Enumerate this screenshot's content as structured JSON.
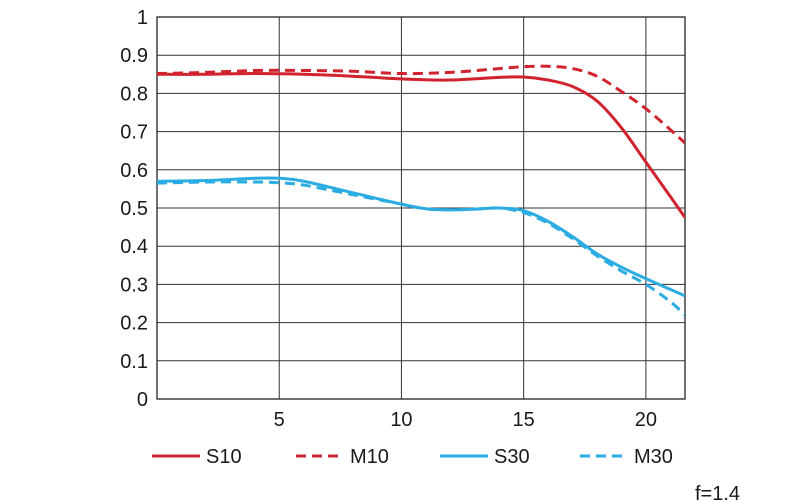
{
  "chart_data": {
    "type": "line",
    "title": "",
    "xlabel": "",
    "ylabel": "",
    "xlim": [
      0,
      21.6
    ],
    "ylim": [
      0,
      1
    ],
    "x_ticks": [
      5,
      10,
      15,
      20
    ],
    "y_ticks": [
      0,
      0.1,
      0.2,
      0.3,
      0.4,
      0.5,
      0.6,
      0.7,
      0.8,
      0.9,
      1
    ],
    "y_tick_labels": [
      "0",
      "0.1",
      "0.2",
      "0.3",
      "0.4",
      "0.5",
      "0.6",
      "0.7",
      "0.8",
      "0.9",
      "1"
    ],
    "x_tick_labels": [
      "5",
      "10",
      "15",
      "20"
    ],
    "grid": true,
    "legend_position": "bottom",
    "annotation": "f=1.4",
    "series": [
      {
        "name": "S10",
        "color": "#d1232e",
        "dash": "solid",
        "x": [
          0,
          2,
          4,
          6,
          8,
          10,
          12,
          14,
          15,
          16,
          17,
          18,
          19,
          20,
          21,
          21.6
        ],
        "y": [
          0.85,
          0.85,
          0.852,
          0.85,
          0.845,
          0.838,
          0.835,
          0.842,
          0.843,
          0.835,
          0.818,
          0.78,
          0.71,
          0.62,
          0.53,
          0.475
        ]
      },
      {
        "name": "M10",
        "color": "#d1232e",
        "dash": "dashed",
        "x": [
          0,
          2,
          4,
          6,
          8,
          10,
          12,
          14,
          15,
          16,
          17,
          18,
          19,
          20,
          21,
          21.6
        ],
        "y": [
          0.852,
          0.855,
          0.86,
          0.86,
          0.858,
          0.852,
          0.855,
          0.865,
          0.87,
          0.871,
          0.865,
          0.845,
          0.805,
          0.76,
          0.705,
          0.67
        ]
      },
      {
        "name": "S30",
        "color": "#2bace2",
        "dash": "solid",
        "x": [
          0,
          2,
          4,
          5,
          6,
          8,
          10,
          11,
          12,
          13,
          14,
          15,
          16,
          17,
          18,
          19,
          20,
          21,
          21.6
        ],
        "y": [
          0.57,
          0.572,
          0.578,
          0.578,
          0.57,
          0.54,
          0.51,
          0.498,
          0.495,
          0.497,
          0.5,
          0.493,
          0.465,
          0.425,
          0.38,
          0.345,
          0.315,
          0.287,
          0.27
        ]
      },
      {
        "name": "M30",
        "color": "#2bace2",
        "dash": "dashed",
        "x": [
          0,
          2,
          4,
          5,
          6,
          8,
          10,
          11,
          12,
          13,
          14,
          15,
          16,
          17,
          18,
          19,
          20,
          21,
          21.6
        ],
        "y": [
          0.565,
          0.568,
          0.568,
          0.566,
          0.56,
          0.535,
          0.51,
          0.498,
          0.495,
          0.497,
          0.5,
          0.488,
          0.46,
          0.42,
          0.375,
          0.335,
          0.3,
          0.255,
          0.22
        ]
      }
    ]
  }
}
